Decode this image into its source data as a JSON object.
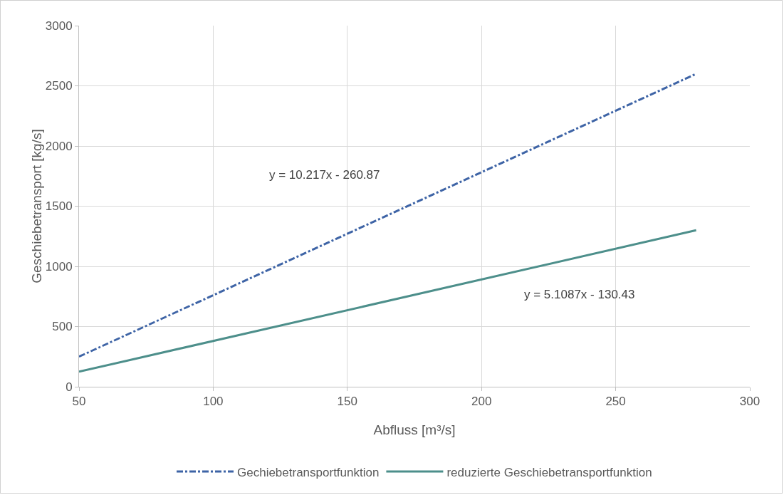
{
  "chart_data": {
    "type": "line",
    "xlabel": "Abfluss [m³/s]",
    "ylabel": "Geschiebetransport [kg/s]",
    "x": [
      50,
      280
    ],
    "series": [
      {
        "name": "Gechiebetransportfunktion",
        "color": "#3e64a6",
        "values": [
          250,
          2600
        ],
        "line_style": "dashed"
      },
      {
        "name": "reduzierte Geschiebetransportfunktion",
        "color": "#4d8f8b",
        "values": [
          125,
          1300
        ],
        "line_style": "solid"
      }
    ],
    "xlim": [
      50,
      300
    ],
    "xticks": [
      50,
      100,
      150,
      200,
      250,
      300
    ],
    "ylim": [
      0,
      3000
    ],
    "yticks": [
      0,
      500,
      1000,
      1500,
      2000,
      2500,
      3000
    ],
    "grid": true,
    "legend": "bottom",
    "marker": "none",
    "annotations": [
      "y = 10.217x - 260.87",
      "y = 5.1087x - 130.43"
    ]
  }
}
